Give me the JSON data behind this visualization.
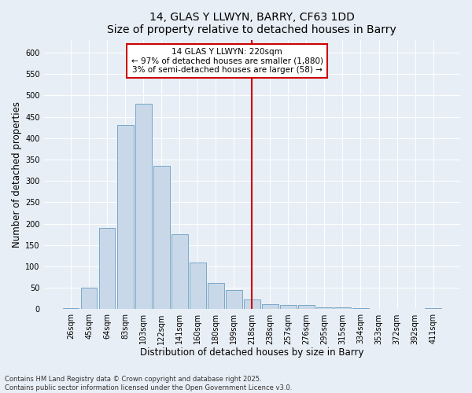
{
  "title_line1": "14, GLAS Y LLWYN, BARRY, CF63 1DD",
  "title_line2": "Size of property relative to detached houses in Barry",
  "xlabel": "Distribution of detached houses by size in Barry",
  "ylabel": "Number of detached properties",
  "categories": [
    "26sqm",
    "45sqm",
    "64sqm",
    "83sqm",
    "103sqm",
    "122sqm",
    "141sqm",
    "160sqm",
    "180sqm",
    "199sqm",
    "218sqm",
    "238sqm",
    "257sqm",
    "276sqm",
    "295sqm",
    "315sqm",
    "334sqm",
    "353sqm",
    "372sqm",
    "392sqm",
    "411sqm"
  ],
  "values": [
    2,
    50,
    190,
    430,
    480,
    335,
    175,
    110,
    62,
    45,
    22,
    12,
    10,
    10,
    5,
    5,
    2,
    0,
    1,
    0,
    2
  ],
  "bar_color": "#c8d8e8",
  "bar_edge_color": "#7aa8c8",
  "vline_x_idx": 10,
  "vline_color": "#cc0000",
  "annotation_line1": "14 GLAS Y LLWYN: 220sqm",
  "annotation_line2": "← 97% of detached houses are smaller (1,880)",
  "annotation_line3": "3% of semi-detached houses are larger (58) →",
  "annotation_box_color": "#cc0000",
  "ylim": [
    0,
    630
  ],
  "yticks": [
    0,
    50,
    100,
    150,
    200,
    250,
    300,
    350,
    400,
    450,
    500,
    550,
    600
  ],
  "background_color": "#e8eef5",
  "plot_bg_color": "#e8eef5",
  "footer_text": "Contains HM Land Registry data © Crown copyright and database right 2025.\nContains public sector information licensed under the Open Government Licence v3.0.",
  "title_fontsize": 10,
  "tick_fontsize": 7,
  "xlabel_fontsize": 8.5,
  "ylabel_fontsize": 8.5,
  "annotation_fontsize": 7.5,
  "footer_fontsize": 6
}
